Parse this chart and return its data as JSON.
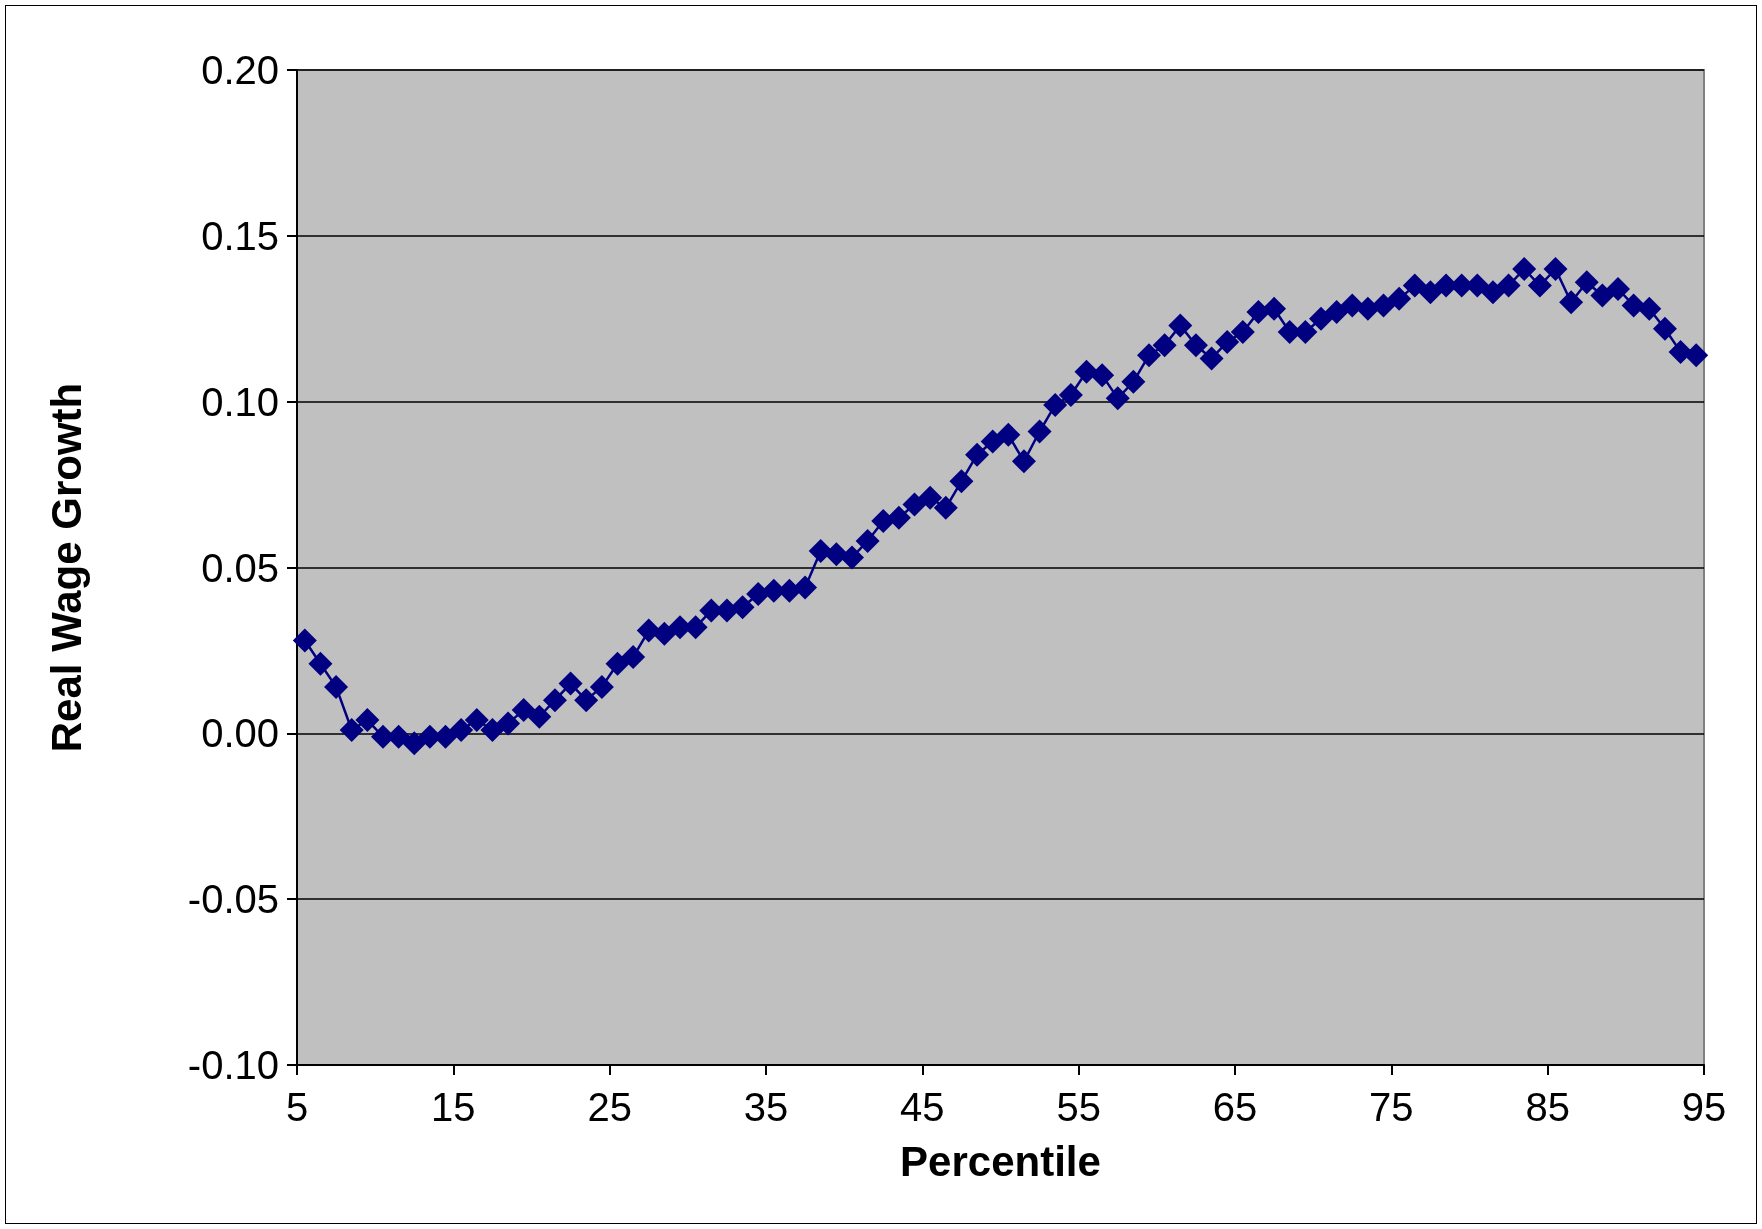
{
  "chart_data": {
    "type": "line",
    "xlabel": "Percentile",
    "ylabel": "Real Wage Growth",
    "x": [
      5.5,
      6.5,
      7.5,
      8.5,
      9.5,
      10.5,
      11.5,
      12.5,
      13.5,
      14.5,
      15.5,
      16.5,
      17.5,
      18.5,
      19.5,
      20.5,
      21.5,
      22.5,
      23.5,
      24.5,
      25.5,
      26.5,
      27.5,
      28.5,
      29.5,
      30.5,
      31.5,
      32.5,
      33.5,
      34.5,
      35.5,
      36.5,
      37.5,
      38.5,
      39.5,
      40.5,
      41.5,
      42.5,
      43.5,
      44.5,
      45.5,
      46.5,
      47.5,
      48.5,
      49.5,
      50.5,
      51.5,
      52.5,
      53.5,
      54.5,
      55.5,
      56.5,
      57.5,
      58.5,
      59.5,
      60.5,
      61.5,
      62.5,
      63.5,
      64.5,
      65.5,
      66.5,
      67.5,
      68.5,
      69.5,
      70.5,
      71.5,
      72.5,
      73.5,
      74.5,
      75.5,
      76.5,
      77.5,
      78.5,
      79.5,
      80.5,
      81.5,
      82.5,
      83.5,
      84.5,
      85.5,
      86.5,
      87.5,
      88.5,
      89.5,
      90.5,
      91.5,
      92.5,
      93.5,
      94.5
    ],
    "series": [
      {
        "color": "#000080",
        "values": [
          0.028,
          0.021,
          0.014,
          0.001,
          0.004,
          -0.001,
          -0.001,
          -0.003,
          -0.001,
          -0.001,
          0.001,
          0.004,
          0.001,
          0.003,
          0.007,
          0.005,
          0.01,
          0.015,
          0.01,
          0.014,
          0.021,
          0.023,
          0.031,
          0.03,
          0.032,
          0.032,
          0.037,
          0.037,
          0.038,
          0.042,
          0.043,
          0.043,
          0.044,
          0.055,
          0.054,
          0.053,
          0.058,
          0.064,
          0.065,
          0.069,
          0.071,
          0.068,
          0.076,
          0.084,
          0.088,
          0.09,
          0.082,
          0.091,
          0.099,
          0.102,
          0.109,
          0.108,
          0.101,
          0.106,
          0.114,
          0.117,
          0.123,
          0.117,
          0.113,
          0.118,
          0.121,
          0.127,
          0.128,
          0.121,
          0.121,
          0.125,
          0.127,
          0.129,
          0.128,
          0.129,
          0.131,
          0.135,
          0.133,
          0.135,
          0.135,
          0.135,
          0.133,
          0.135,
          0.14,
          0.135,
          0.14,
          0.13,
          0.136,
          0.132,
          0.134,
          0.129,
          0.128,
          0.122,
          0.115,
          0.114
        ]
      }
    ],
    "xlim": [
      5,
      95
    ],
    "xticks": [
      5,
      15,
      25,
      35,
      45,
      55,
      65,
      75,
      85,
      95
    ],
    "ylim": [
      -0.1,
      0.2
    ],
    "yticks": [
      {
        "value": -0.1,
        "label": "-0.10"
      },
      {
        "value": -0.05,
        "label": "-0.05"
      },
      {
        "value": 0,
        "label": "0.00"
      },
      {
        "value": 0.05,
        "label": "0.05"
      },
      {
        "value": 0.1,
        "label": "0.10"
      },
      {
        "value": 0.15,
        "label": "0.15"
      },
      {
        "value": 0.2,
        "label": "0.20"
      }
    ],
    "grid": "y",
    "marker": "diamond",
    "line_style": "solid"
  }
}
